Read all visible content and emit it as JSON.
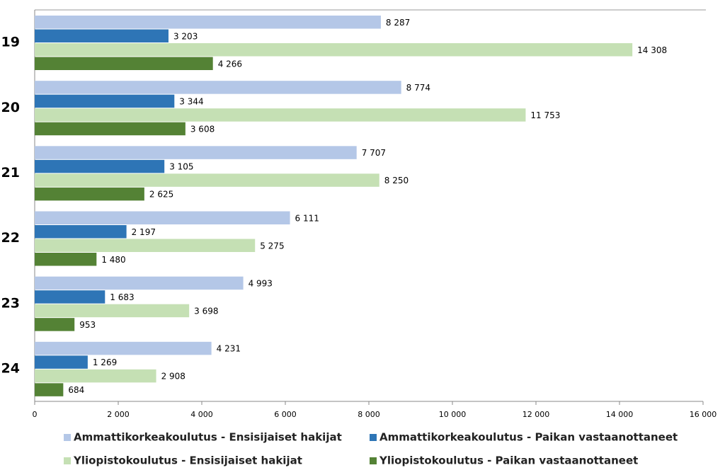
{
  "chart_data": {
    "type": "hbar",
    "categories": [
      "19",
      "20",
      "21",
      "22",
      "23",
      "24"
    ],
    "series": [
      {
        "name": "Ammattikorkeakoulutus - Ensisijaiset hakijat",
        "color": "#b4c7e7",
        "values": [
          8287,
          8774,
          7707,
          6111,
          4993,
          4231
        ],
        "value_labels": [
          "8 287",
          "8 774",
          "7 707",
          "6 111",
          "4 993",
          "4 231"
        ]
      },
      {
        "name": "Ammattikorkeakoulutus - Paikan vastaanottaneet",
        "color": "#2e75b6",
        "values": [
          3203,
          3344,
          3105,
          2197,
          1683,
          1269
        ],
        "value_labels": [
          "3 203",
          "3 344",
          "3 105",
          "2 197",
          "1 683",
          "1 269"
        ]
      },
      {
        "name": "Yliopistokoulutus - Ensisijaiset hakijat",
        "color": "#c5e0b4",
        "values": [
          14308,
          11753,
          8250,
          5275,
          3698,
          2908
        ],
        "value_labels": [
          "14 308",
          "11 753",
          "8 250",
          "5 275",
          "3 698",
          "2 908"
        ]
      },
      {
        "name": "Yliopistokoulutus - Paikan vastaanottaneet",
        "color": "#548235",
        "values": [
          4266,
          3608,
          2625,
          1480,
          953,
          684
        ],
        "value_labels": [
          "4 266",
          "3 608",
          "2 625",
          "1 480",
          "953",
          "684"
        ]
      }
    ],
    "xlim": [
      0,
      16000
    ],
    "xticks": [
      0,
      {
        "value": 2000,
        "label": "2 000"
      },
      {
        "value": 4000,
        "label": "4 000"
      },
      {
        "value": 6000,
        "label": "6 000"
      },
      {
        "value": 8000,
        "label": "8 000"
      },
      {
        "value": 10000,
        "label": "10 000"
      },
      {
        "value": 12000,
        "label": "12 000"
      },
      {
        "value": 14000,
        "label": "14 000"
      },
      {
        "value": 16000,
        "label": "16 000"
      }
    ],
    "legend": "bottom",
    "grid": false
  }
}
